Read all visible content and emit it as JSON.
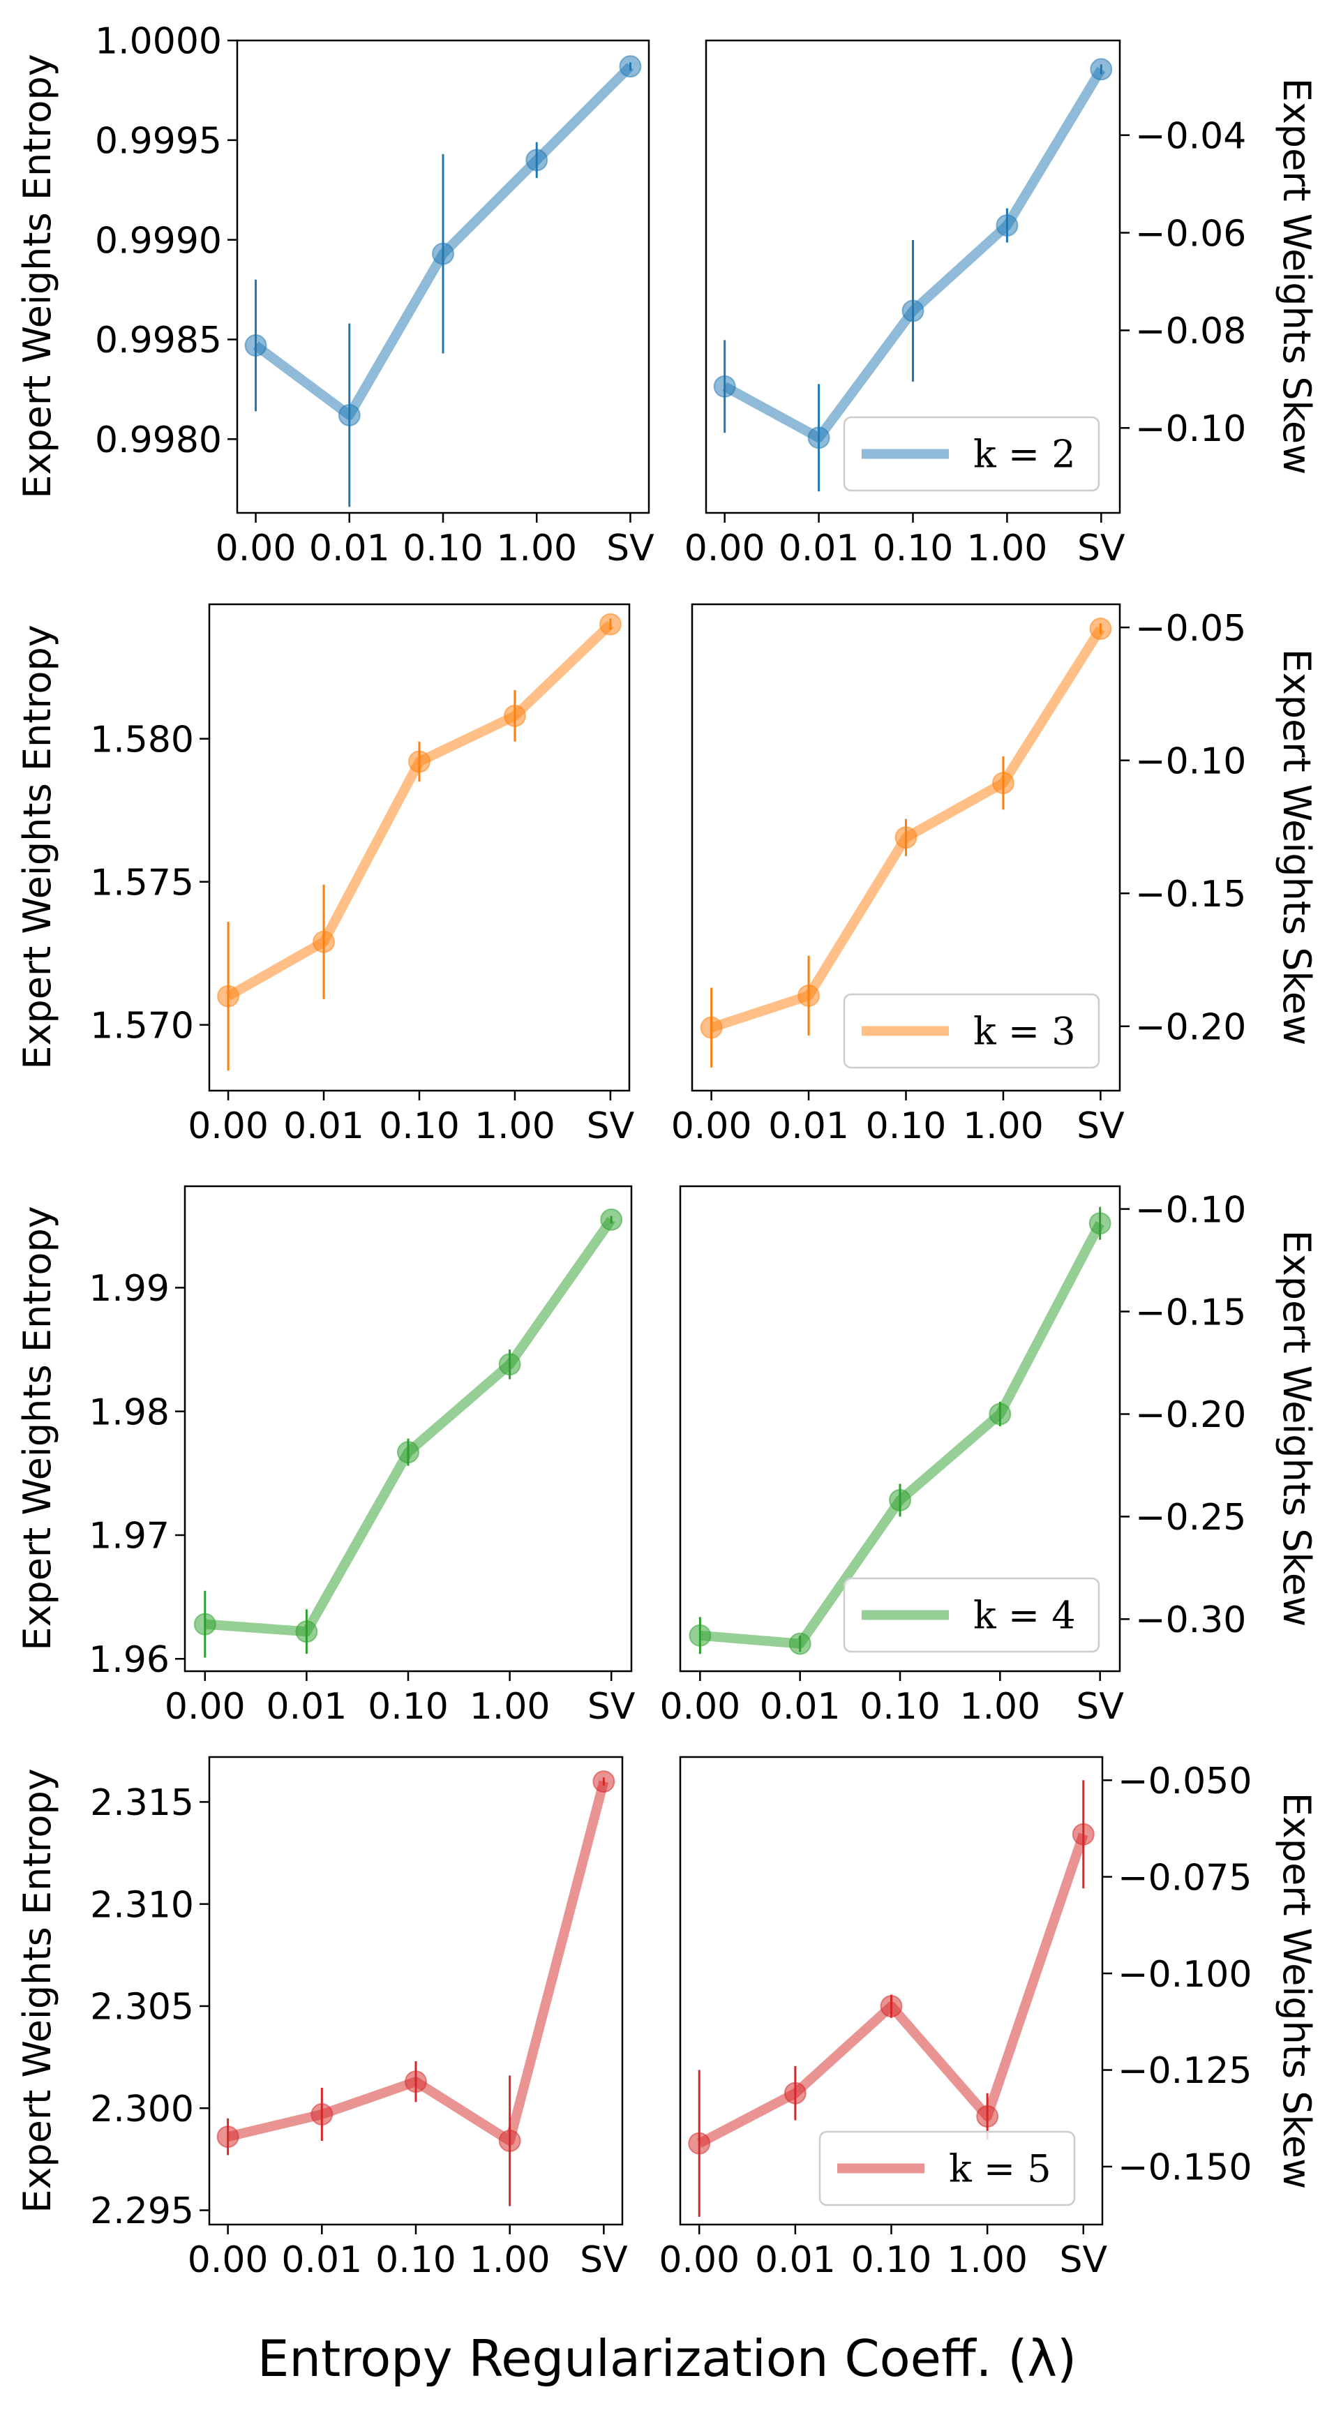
{
  "figure": {
    "xlabel": "Entropy Regularization Coeff. (λ)"
  },
  "chart_data": [
    {
      "type": "line",
      "panel": "k2-entropy",
      "categories": [
        "0.00",
        "0.01",
        "0.10",
        "1.00",
        "SV"
      ],
      "series": [
        {
          "values": [
            0.99847,
            0.99812,
            0.99893,
            0.9994,
            0.99987
          ],
          "err": [
            0.00033,
            0.00046,
            0.0005,
            9e-05,
            2e-05
          ],
          "color": "#1f77b4"
        }
      ],
      "ylabel": "Expert Weights Entropy",
      "yticks": [
        0.998,
        0.9985,
        0.999,
        0.9995,
        1.0
      ],
      "ytick_labels": [
        "0.9980",
        "0.9985",
        "0.9990",
        "0.9995",
        "1.0000"
      ],
      "xtick_labels": [
        "0.00",
        "0.01",
        "0.10",
        "1.00",
        "SV"
      ],
      "ylim": [
        0.99763,
        1.0
      ]
    },
    {
      "type": "line",
      "panel": "k2-skew",
      "categories": [
        "0.00",
        "0.01",
        "0.10",
        "1.00",
        "SV"
      ],
      "series": [
        {
          "values": [
            -0.0915,
            -0.102,
            -0.076,
            -0.0585,
            -0.0265
          ],
          "err": [
            0.0095,
            0.011,
            0.0145,
            0.0035,
            0.001
          ],
          "color": "#1f77b4"
        }
      ],
      "ylabel": "Expert Weights Skew",
      "yticks": [
        -0.1,
        -0.08,
        -0.06,
        -0.04
      ],
      "ytick_labels": [
        "−0.10",
        "−0.08",
        "−0.06",
        "−0.04"
      ],
      "xtick_labels": [
        "0.00",
        "0.01",
        "0.10",
        "1.00",
        "SV"
      ],
      "ylim": [
        -0.1174,
        -0.0206
      ],
      "legend": {
        "label": "k = 2",
        "placement": "lower-right"
      }
    },
    {
      "type": "line",
      "panel": "k3-entropy",
      "categories": [
        "0.00",
        "0.01",
        "0.10",
        "1.00",
        "SV"
      ],
      "series": [
        {
          "values": [
            1.571,
            1.5729,
            1.5792,
            1.5808,
            1.584
          ],
          "err": [
            0.0026,
            0.002,
            0.0007,
            0.0009,
            0.0002
          ],
          "color": "#ff7f0e"
        }
      ],
      "ylabel": "Expert Weights Entropy",
      "yticks": [
        1.57,
        1.575,
        1.58
      ],
      "ytick_labels": [
        "1.570",
        "1.575",
        "1.580"
      ],
      "xtick_labels": [
        "0.00",
        "0.01",
        "0.10",
        "1.00",
        "SV"
      ],
      "ylim": [
        1.5677,
        1.5847
      ]
    },
    {
      "type": "line",
      "panel": "k3-skew",
      "categories": [
        "0.00",
        "0.01",
        "0.10",
        "1.00",
        "SV"
      ],
      "series": [
        {
          "values": [
            -0.2005,
            -0.1885,
            -0.129,
            -0.1085,
            -0.0505
          ],
          "err": [
            0.015,
            0.015,
            0.007,
            0.01,
            0.002
          ],
          "color": "#ff7f0e"
        }
      ],
      "ylabel": "Expert Weights Skew",
      "yticks": [
        -0.2,
        -0.15,
        -0.1,
        -0.05
      ],
      "ytick_labels": [
        "−0.20",
        "−0.15",
        "−0.10",
        "−0.05"
      ],
      "xtick_labels": [
        "0.00",
        "0.01",
        "0.10",
        "1.00",
        "SV"
      ],
      "ylim": [
        -0.2242,
        -0.0413
      ],
      "legend": {
        "label": "k = 3",
        "placement": "lower-right"
      }
    },
    {
      "type": "line",
      "panel": "k4-entropy",
      "categories": [
        "0.00",
        "0.01",
        "0.10",
        "1.00",
        "SV"
      ],
      "series": [
        {
          "values": [
            1.9628,
            1.9622,
            1.9767,
            1.9838,
            1.9955
          ],
          "err": [
            0.0027,
            0.0018,
            0.0011,
            0.0012,
            0.0003
          ],
          "color": "#2ca02c"
        }
      ],
      "ylabel": "Expert Weights Entropy",
      "yticks": [
        1.96,
        1.97,
        1.98,
        1.99
      ],
      "ytick_labels": [
        "1.96",
        "1.97",
        "1.98",
        "1.99"
      ],
      "xtick_labels": [
        "0.00",
        "0.01",
        "0.10",
        "1.00",
        "SV"
      ],
      "ylim": [
        1.959,
        1.9982
      ]
    },
    {
      "type": "line",
      "panel": "k4-skew",
      "categories": [
        "0.00",
        "0.01",
        "0.10",
        "1.00",
        "SV"
      ],
      "series": [
        {
          "values": [
            -0.308,
            -0.312,
            -0.242,
            -0.2,
            -0.107
          ],
          "err": [
            0.009,
            0.004,
            0.008,
            0.006,
            0.008
          ],
          "color": "#2ca02c"
        }
      ],
      "ylabel": "Expert Weights Skew",
      "yticks": [
        -0.3,
        -0.25,
        -0.2,
        -0.15,
        -0.1
      ],
      "ytick_labels": [
        "−0.30",
        "−0.25",
        "−0.20",
        "−0.15",
        "−0.10"
      ],
      "xtick_labels": [
        "0.00",
        "0.01",
        "0.10",
        "1.00",
        "SV"
      ],
      "ylim": [
        -0.3254,
        -0.0889
      ],
      "legend": {
        "label": "k = 4",
        "placement": "lower-right"
      }
    },
    {
      "type": "line",
      "panel": "k5-entropy",
      "categories": [
        "0.00",
        "0.01",
        "0.10",
        "1.00",
        "SV"
      ],
      "series": [
        {
          "values": [
            2.2986,
            2.2997,
            2.3013,
            2.2984,
            2.316
          ],
          "err": [
            0.0009,
            0.0013,
            0.001,
            0.0032,
            0.0002
          ],
          "color": "#d62728"
        }
      ],
      "ylabel": "Expert Weights Entropy",
      "yticks": [
        2.295,
        2.3,
        2.305,
        2.31,
        2.315
      ],
      "ytick_labels": [
        "2.295",
        "2.300",
        "2.305",
        "2.310",
        "2.315"
      ],
      "xtick_labels": [
        "0.00",
        "0.01",
        "0.10",
        "1.00",
        "SV"
      ],
      "ylim": [
        2.2943,
        2.3172
      ]
    },
    {
      "type": "line",
      "panel": "k5-skew",
      "categories": [
        "0.00",
        "0.01",
        "0.10",
        "1.00",
        "SV"
      ],
      "series": [
        {
          "values": [
            -0.144,
            -0.131,
            -0.1085,
            -0.137,
            -0.064
          ],
          "err": [
            0.019,
            0.007,
            0.003,
            0.006,
            0.014
          ],
          "color": "#d62728"
        }
      ],
      "ylabel": "Expert Weights Skew",
      "yticks": [
        -0.15,
        -0.125,
        -0.1,
        -0.075,
        -0.05
      ],
      "ytick_labels": [
        "−0.150",
        "−0.125",
        "−0.100",
        "−0.075",
        "−0.050"
      ],
      "xtick_labels": [
        "0.00",
        "0.01",
        "0.10",
        "1.00",
        "SV"
      ],
      "ylim": [
        -0.165,
        -0.044
      ],
      "legend": {
        "label": "k = 5",
        "placement": "lower-right"
      }
    }
  ]
}
